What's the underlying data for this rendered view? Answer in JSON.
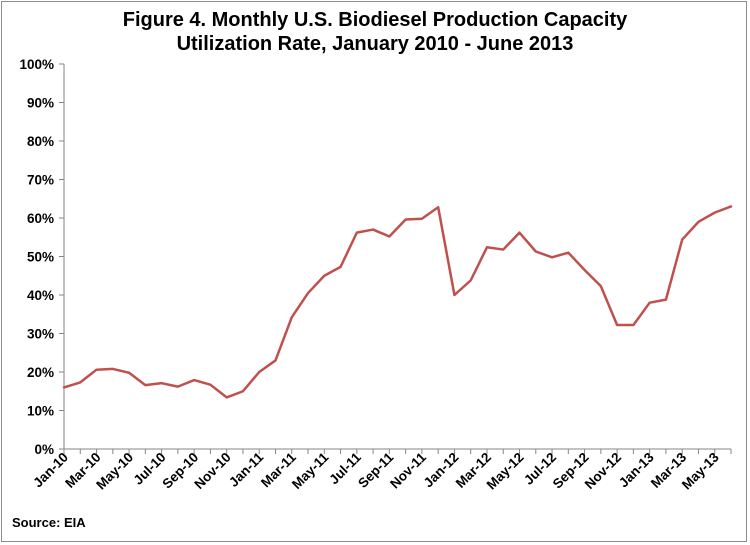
{
  "chart_data": {
    "type": "line",
    "title_line1": "Figure 4. Monthly U.S. Biodiesel Production Capacity",
    "title_line2": "Utilization Rate, January 2010 - June 2013",
    "source": "Source: EIA",
    "ylim": [
      0,
      1
    ],
    "ytick_labels": [
      "0%",
      "10%",
      "20%",
      "30%",
      "40%",
      "50%",
      "60%",
      "70%",
      "80%",
      "90%",
      "100%"
    ],
    "x": [
      "Jan-10",
      "Feb-10",
      "Mar-10",
      "Apr-10",
      "May-10",
      "Jun-10",
      "Jul-10",
      "Aug-10",
      "Sep-10",
      "Oct-10",
      "Nov-10",
      "Dec-10",
      "Jan-11",
      "Feb-11",
      "Mar-11",
      "Apr-11",
      "May-11",
      "Jun-11",
      "Jul-11",
      "Aug-11",
      "Sep-11",
      "Oct-11",
      "Nov-11",
      "Dec-11",
      "Jan-12",
      "Feb-12",
      "Mar-12",
      "Apr-12",
      "May-12",
      "Jun-12",
      "Jul-12",
      "Aug-12",
      "Sep-12",
      "Oct-12",
      "Nov-12",
      "Dec-12",
      "Jan-13",
      "Feb-13",
      "Mar-13",
      "Apr-13",
      "May-13",
      "Jun-13"
    ],
    "xtick_labels": [
      "Jan-10",
      "Mar-10",
      "May-10",
      "Jul-10",
      "Sep-10",
      "Nov-10",
      "Jan-11",
      "Mar-11",
      "May-11",
      "Jul-11",
      "Sep-11",
      "Nov-11",
      "Jan-12",
      "Mar-12",
      "May-12",
      "Jul-12",
      "Sep-12",
      "Nov-12",
      "Jan-13",
      "Mar-13",
      "May-13"
    ],
    "series": [
      {
        "color": "#c0504d",
        "values": [
          0.16,
          0.173,
          0.206,
          0.208,
          0.198,
          0.166,
          0.171,
          0.162,
          0.179,
          0.167,
          0.134,
          0.15,
          0.2,
          0.23,
          0.342,
          0.405,
          0.45,
          0.473,
          0.562,
          0.57,
          0.552,
          0.596,
          0.598,
          0.628,
          0.4,
          0.438,
          0.524,
          0.518,
          0.562,
          0.513,
          0.498,
          0.51,
          0.465,
          0.423,
          0.322,
          0.322,
          0.38,
          0.388,
          0.544,
          0.59,
          0.614,
          0.63
        ]
      }
    ],
    "grid": false,
    "legend": "none"
  }
}
